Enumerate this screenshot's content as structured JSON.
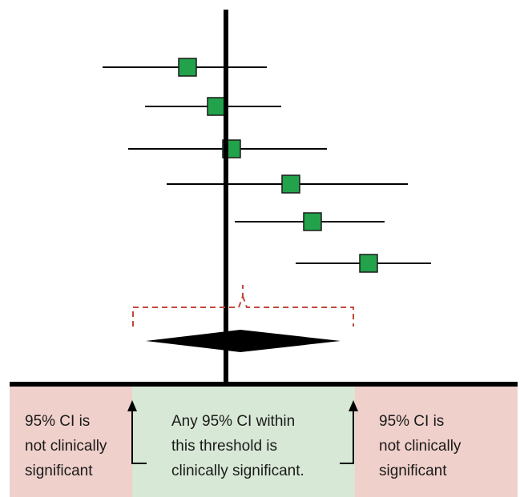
{
  "colors": {
    "marker_fill": "#22a24a",
    "marker_stroke": "#1a1a1a",
    "line": "#000000",
    "bracket": "#c0483a",
    "zone_outside": "#f0d0cb",
    "zone_threshold": "#d8e8d6",
    "diamond": "#000000"
  },
  "studies": [
    {
      "low": 128,
      "point": 234,
      "high": 333
    },
    {
      "low": 181,
      "point": 270,
      "high": 351
    },
    {
      "low": 160,
      "point": 289,
      "high": 408
    },
    {
      "low": 208,
      "point": 363,
      "high": 509
    },
    {
      "low": 293,
      "point": 390,
      "high": 480
    },
    {
      "low": 369,
      "point": 460,
      "high": 538
    }
  ],
  "pooled": {
    "low": 182,
    "point": 300,
    "high": 425
  },
  "zones": {
    "left": {
      "lines": [
        "95% CI is",
        "not clinically",
        "significant"
      ]
    },
    "middle": {
      "lines": [
        "Any 95% CI within",
        "this threshold is",
        "clinically significant."
      ]
    },
    "right": {
      "lines": [
        "95% CI is",
        "not clinically",
        "significant"
      ]
    }
  },
  "icons": [
    "up-arrow-icon"
  ]
}
